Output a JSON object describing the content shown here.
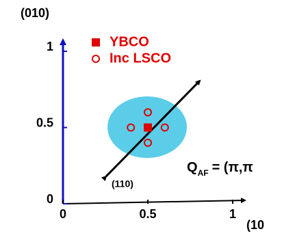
{
  "chart_data": {
    "type": "scatter",
    "y_label": "(010)",
    "x_label": "(10",
    "xlim": [
      0,
      1
    ],
    "ylim": [
      0,
      1
    ],
    "xticks": [
      0,
      0.5,
      1
    ],
    "yticks": [
      0,
      0.5,
      1
    ],
    "series": [
      {
        "name": "YBCO",
        "color": "#e00000",
        "marker": "square",
        "x": [
          0.5
        ],
        "y": [
          0.5
        ]
      },
      {
        "name": "Inc LSCO",
        "color": "#e00000",
        "marker": "circle",
        "x": [
          0.5,
          0.4,
          0.6,
          0.5
        ],
        "y": [
          0.6,
          0.5,
          0.5,
          0.4
        ]
      }
    ],
    "direction_label": "(110)",
    "q_annotation": {
      "symbol": "Q",
      "subscript": "AF",
      "text": "= (π,π"
    }
  }
}
